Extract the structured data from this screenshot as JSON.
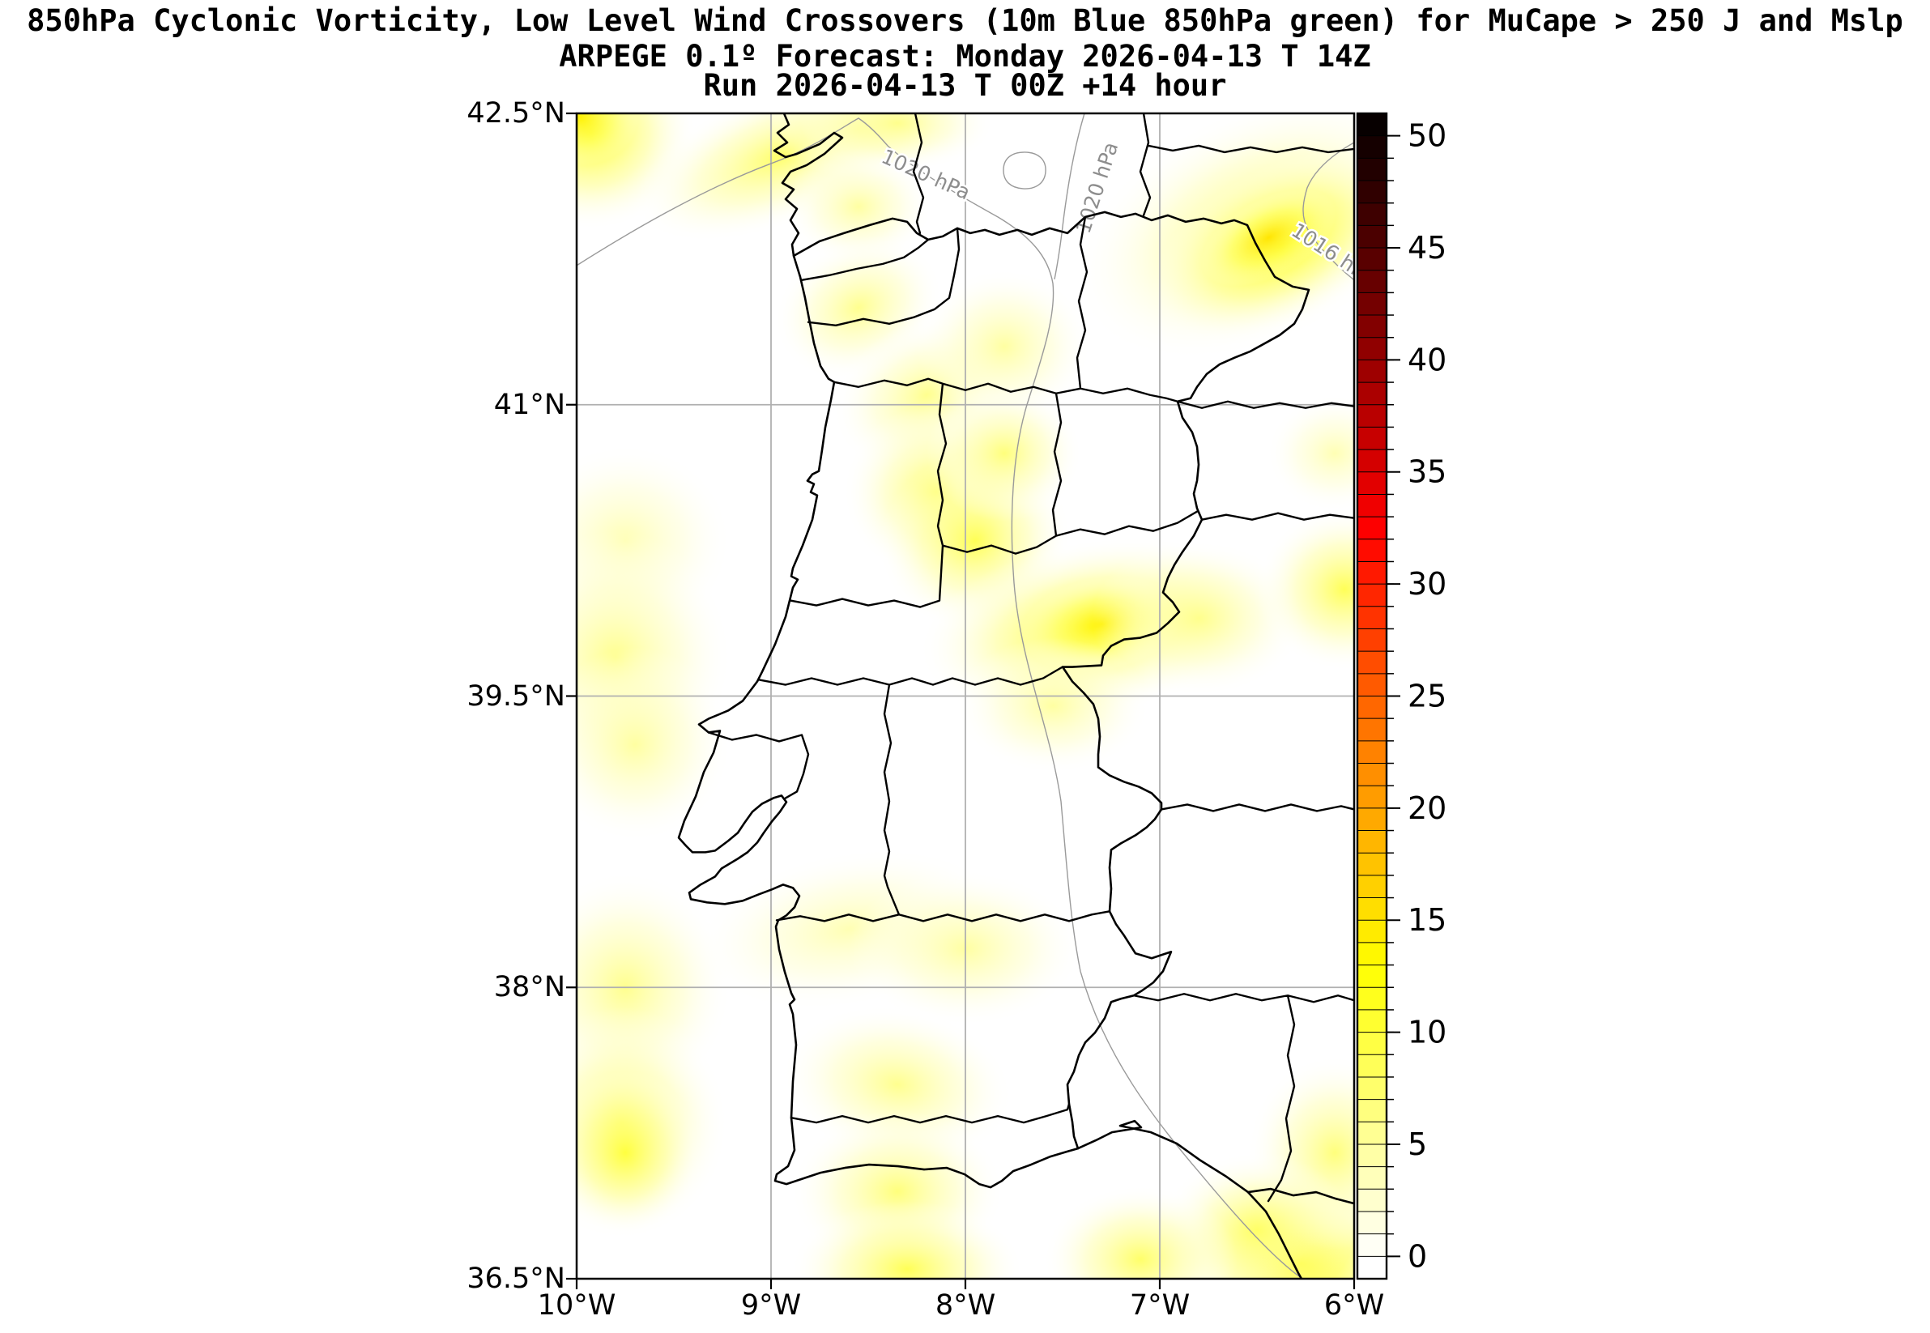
{
  "title": {
    "line1": "850hPa Cyclonic Vorticity, Low Level Wind Crossovers (10m Blue 850hPa green) for MuCape > 250 J and Mslp",
    "line2": "ARPEGE 0.1º Forecast: Monday 2026-04-13 T 14Z",
    "line3": "Run 2026-04-13 T 00Z +14 hour"
  },
  "axes": {
    "lon_range": [
      -10,
      -6
    ],
    "lat_range": [
      36.5,
      42.5
    ],
    "x_ticks": [
      {
        "lon": -10,
        "label": "10°W"
      },
      {
        "lon": -9,
        "label": "9°W"
      },
      {
        "lon": -8,
        "label": "8°W"
      },
      {
        "lon": -7,
        "label": "7°W"
      },
      {
        "lon": -6,
        "label": "6°W"
      }
    ],
    "y_ticks": [
      {
        "lat": 42.5,
        "label": "42.5°N"
      },
      {
        "lat": 41,
        "label": "41°N"
      },
      {
        "lat": 39.5,
        "label": "39.5°N"
      },
      {
        "lat": 38,
        "label": "38°N"
      },
      {
        "lat": 36.5,
        "label": "36.5°N"
      }
    ],
    "grid_lons": [
      -9,
      -8,
      -7
    ],
    "grid_lats": [
      41,
      39.5,
      38
    ],
    "grid_color": "#b0b0b0"
  },
  "colorbar": {
    "value_min": -1,
    "value_max": 51,
    "cell_step": 1,
    "major_tick_values": [
      0,
      5,
      10,
      15,
      20,
      25,
      30,
      35,
      40,
      45,
      50
    ],
    "colormap": "hot_r"
  },
  "isobars": [
    {
      "text": "1020 hPa"
    },
    {
      "text": "1020 hPa"
    },
    {
      "text": "1016 hPa"
    }
  ],
  "chart_data": {
    "type": "map",
    "field": "850hPa Cyclonic Vorticity (shaded), MSLP (gray contours)",
    "model": "ARPEGE 0.1º",
    "forecast_valid": "Monday 2026-04-13 T 14Z",
    "run": "2026-04-13 T 00Z",
    "lead": "+14 hour",
    "extent": {
      "lon": [
        -10,
        -6
      ],
      "lat": [
        36.5,
        42.5
      ]
    },
    "colorbar_ticks": [
      0,
      5,
      10,
      15,
      20,
      25,
      30,
      35,
      40,
      45,
      50
    ],
    "mslp_isobars_hpa": [
      1016,
      1020
    ],
    "vorticity_blobs": [
      {
        "lon": -9.93,
        "lat": 42.4,
        "rx": 0.55,
        "ry": 0.5,
        "rot": 0,
        "value": 12
      },
      {
        "lon": -9.98,
        "lat": 42.48,
        "rx": 0.3,
        "ry": 0.25,
        "rot": 0,
        "value": 14
      },
      {
        "lon": -8.95,
        "lat": 42.28,
        "rx": 0.8,
        "ry": 0.35,
        "rot": -22,
        "value": 8
      },
      {
        "lon": -8.55,
        "lat": 42.42,
        "rx": 0.45,
        "ry": 0.25,
        "rot": 0,
        "value": 6
      },
      {
        "lon": -8.35,
        "lat": 42.45,
        "rx": 0.5,
        "ry": 0.25,
        "rot": 0,
        "value": 6
      },
      {
        "lon": -8.55,
        "lat": 42.02,
        "rx": 0.38,
        "ry": 0.3,
        "rot": 0,
        "value": 5
      },
      {
        "lon": -6.5,
        "lat": 41.92,
        "rx": 1.0,
        "ry": 0.6,
        "rot": -25,
        "value": 7
      },
      {
        "lon": -6.38,
        "lat": 41.82,
        "rx": 0.72,
        "ry": 0.4,
        "rot": -28,
        "value": 13
      },
      {
        "lon": -6.44,
        "lat": 41.86,
        "rx": 0.38,
        "ry": 0.2,
        "rot": -28,
        "value": 15
      },
      {
        "lon": -8.55,
        "lat": 41.5,
        "rx": 0.45,
        "ry": 0.35,
        "rot": -25,
        "value": 6
      },
      {
        "lon": -8.2,
        "lat": 41.05,
        "rx": 0.5,
        "ry": 0.38,
        "rot": -25,
        "value": 6
      },
      {
        "lon": -7.8,
        "lat": 41.3,
        "rx": 0.45,
        "ry": 0.4,
        "rot": 0,
        "value": 5
      },
      {
        "lon": -8.15,
        "lat": 40.55,
        "rx": 0.48,
        "ry": 0.45,
        "rot": 0,
        "value": 8
      },
      {
        "lon": -7.95,
        "lat": 40.3,
        "rx": 0.5,
        "ry": 0.45,
        "rot": -20,
        "value": 9
      },
      {
        "lon": -7.8,
        "lat": 40.75,
        "rx": 0.4,
        "ry": 0.35,
        "rot": 0,
        "value": 7
      },
      {
        "lon": -7.35,
        "lat": 39.85,
        "rx": 0.9,
        "ry": 0.45,
        "rot": -10,
        "value": 12
      },
      {
        "lon": -7.3,
        "lat": 39.87,
        "rx": 0.42,
        "ry": 0.24,
        "rot": -10,
        "value": 14
      },
      {
        "lon": -6.8,
        "lat": 39.9,
        "rx": 0.55,
        "ry": 0.4,
        "rot": 0,
        "value": 6
      },
      {
        "lon": -7.55,
        "lat": 39.45,
        "rx": 0.5,
        "ry": 0.35,
        "rot": 0,
        "value": 5
      },
      {
        "lon": -6.05,
        "lat": 40.05,
        "rx": 0.45,
        "ry": 0.42,
        "rot": 0,
        "value": 9
      },
      {
        "lon": -6.1,
        "lat": 40.75,
        "rx": 0.35,
        "ry": 0.3,
        "rot": 0,
        "value": 4
      },
      {
        "lon": -9.75,
        "lat": 40.3,
        "rx": 0.55,
        "ry": 0.5,
        "rot": 0,
        "value": 4
      },
      {
        "lon": -9.8,
        "lat": 39.7,
        "rx": 0.6,
        "ry": 0.65,
        "rot": 0,
        "value": 6
      },
      {
        "lon": -9.7,
        "lat": 39.25,
        "rx": 0.5,
        "ry": 0.5,
        "rot": 0,
        "value": 5
      },
      {
        "lon": -9.75,
        "lat": 38.0,
        "rx": 0.55,
        "ry": 0.6,
        "rot": 0,
        "value": 6
      },
      {
        "lon": -9.77,
        "lat": 37.3,
        "rx": 0.55,
        "ry": 0.6,
        "rot": 0,
        "value": 8
      },
      {
        "lon": -9.75,
        "lat": 37.15,
        "rx": 0.38,
        "ry": 0.42,
        "rot": 0,
        "value": 10
      },
      {
        "lon": -8.35,
        "lat": 37.5,
        "rx": 0.6,
        "ry": 0.4,
        "rot": 10,
        "value": 6
      },
      {
        "lon": -8.35,
        "lat": 36.95,
        "rx": 0.55,
        "ry": 0.42,
        "rot": 0,
        "value": 7
      },
      {
        "lon": -8.3,
        "lat": 36.55,
        "rx": 0.6,
        "ry": 0.35,
        "rot": 0,
        "value": 9
      },
      {
        "lon": -6.28,
        "lat": 36.58,
        "rx": 0.65,
        "ry": 0.5,
        "rot": 0,
        "value": 13
      },
      {
        "lon": -6.1,
        "lat": 37.15,
        "rx": 0.45,
        "ry": 0.5,
        "rot": 0,
        "value": 7
      },
      {
        "lon": -6.5,
        "lat": 36.75,
        "rx": 0.5,
        "ry": 0.4,
        "rot": 0,
        "value": 8
      },
      {
        "lon": -7.1,
        "lat": 36.6,
        "rx": 0.5,
        "ry": 0.38,
        "rot": 0,
        "value": 8
      },
      {
        "lon": -8.6,
        "lat": 38.3,
        "rx": 0.8,
        "ry": 0.4,
        "rot": -10,
        "value": 4
      },
      {
        "lon": -8.0,
        "lat": 38.2,
        "rx": 0.6,
        "ry": 0.4,
        "rot": 0,
        "value": 5
      }
    ]
  }
}
